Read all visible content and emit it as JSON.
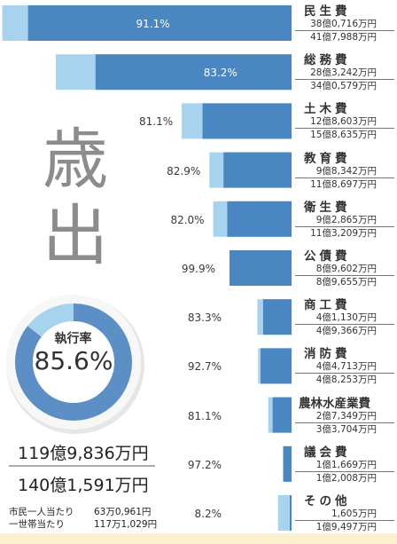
{
  "section_title": [
    "歳",
    "出"
  ],
  "chart_data": {
    "type": "bar",
    "categories": [
      {
        "name": "民生費",
        "executed": "38億0,716万円",
        "budget": "41億7,988万円",
        "rate": 91.1,
        "rate_label": "91.1%",
        "budget_oku": 41.8,
        "executed_oku": 38.07
      },
      {
        "name": "総務費",
        "executed": "28億3,242万円",
        "budget": "34億0,579万円",
        "rate": 83.2,
        "rate_label": "83.2%",
        "budget_oku": 34.06,
        "executed_oku": 28.32
      },
      {
        "name": "土木費",
        "executed": "12億8,603万円",
        "budget": "15億8,635万円",
        "rate": 81.1,
        "rate_label": "81.1%",
        "budget_oku": 15.86,
        "executed_oku": 12.86
      },
      {
        "name": "教育費",
        "executed": "9億8,342万円",
        "budget": "11億8,697万円",
        "rate": 82.9,
        "rate_label": "82.9%",
        "budget_oku": 11.87,
        "executed_oku": 9.83
      },
      {
        "name": "衛生費",
        "executed": "9億2,865万円",
        "budget": "11億3,209万円",
        "rate": 82.0,
        "rate_label": "82.0%",
        "budget_oku": 11.32,
        "executed_oku": 9.29
      },
      {
        "name": "公債費",
        "executed": "8億9,602万円",
        "budget": "8億9,655万円",
        "rate": 99.9,
        "rate_label": "99.9%",
        "budget_oku": 8.97,
        "executed_oku": 8.96
      },
      {
        "name": "商工費",
        "executed": "4億1,130万円",
        "budget": "4億9,366万円",
        "rate": 83.3,
        "rate_label": "83.3%",
        "budget_oku": 4.94,
        "executed_oku": 4.11
      },
      {
        "name": "消防費",
        "executed": "4億4,713万円",
        "budget": "4億8,253万円",
        "rate": 92.7,
        "rate_label": "92.7%",
        "budget_oku": 4.83,
        "executed_oku": 4.47
      },
      {
        "name": "農林水産業費",
        "executed": "2億7,349万円",
        "budget": "3億3,704万円",
        "rate": 81.1,
        "rate_label": "81.1%",
        "budget_oku": 3.37,
        "executed_oku": 2.73
      },
      {
        "name": "議会費",
        "executed": "1億1,669万円",
        "budget": "1億2,008万円",
        "rate": 97.2,
        "rate_label": "97.2%",
        "budget_oku": 1.2,
        "executed_oku": 1.17
      },
      {
        "name": "その他",
        "executed": "1,605万円",
        "budget": "1億9,497万円",
        "rate": 8.2,
        "rate_label": "8.2%",
        "budget_oku": 1.95,
        "executed_oku": 0.16
      }
    ],
    "colors": {
      "executed": "#4a86c1",
      "budget": "#a7d3ee"
    }
  },
  "summary": {
    "rate_title": "執行率",
    "rate_value": "85.6%",
    "rate_number": 85.6,
    "total_executed": "119億9,836万円",
    "total_budget": "140億1,591万円",
    "per_citizen_label": "市民一人当たり",
    "per_citizen_value": "63万0,961円",
    "per_household_label": "一世帯当たり",
    "per_household_value": "117万1,029円",
    "colors": {
      "executed": "#5b8fc5",
      "remaining": "#a7d3ee"
    }
  }
}
